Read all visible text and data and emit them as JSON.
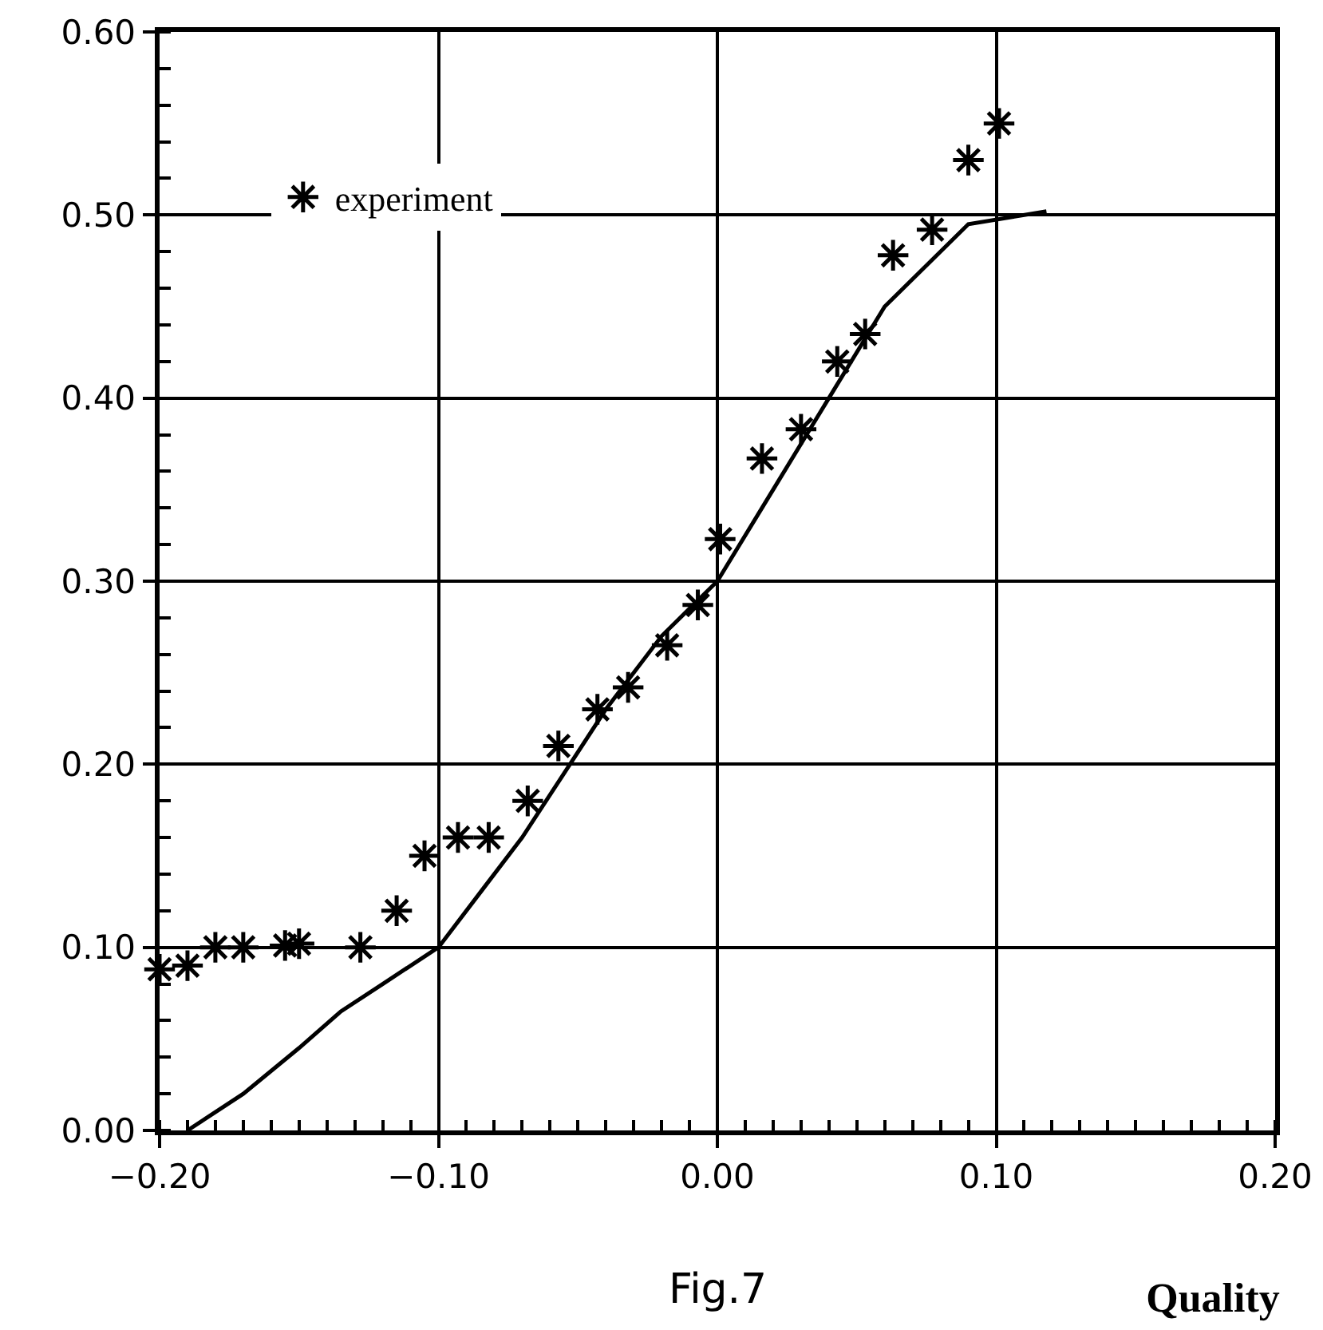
{
  "chart_data": {
    "type": "line",
    "xlabel": "Quality",
    "annotations": [
      "Fig.7"
    ],
    "xlim": [
      -0.2,
      0.2
    ],
    "xticks": [
      {
        "value": -0.2,
        "label": "−0.20"
      },
      {
        "value": -0.1,
        "label": "−0.10"
      },
      {
        "value": 0,
        "label": "0.00"
      },
      {
        "value": 0.1,
        "label": "0.10"
      },
      {
        "value": 0.2,
        "label": "0.20"
      }
    ],
    "ylim": [
      0,
      0.6
    ],
    "yticks": [
      {
        "value": 0,
        "label": "0.00"
      },
      {
        "value": 0.1,
        "label": "0.10"
      },
      {
        "value": 0.2,
        "label": "0.20"
      },
      {
        "value": 0.3,
        "label": "0.30"
      },
      {
        "value": 0.4,
        "label": "0.40"
      },
      {
        "value": 0.5,
        "label": "0.50"
      },
      {
        "value": 0.6,
        "label": "0.60"
      }
    ],
    "grid": true,
    "legend": "top left",
    "series": [
      {
        "color": "#000000",
        "line_style": "solid",
        "marker": "none",
        "x": [
          -0.19,
          -0.17,
          -0.15,
          -0.135,
          -0.12,
          -0.1,
          -0.085,
          -0.07,
          -0.055,
          -0.04,
          -0.02,
          0,
          0.02,
          0.04,
          0.06,
          0.09,
          0.118
        ],
        "values": [
          0,
          0.02,
          0.045,
          0.065,
          0.08,
          0.1,
          0.13,
          0.16,
          0.195,
          0.23,
          0.27,
          0.3,
          0.35,
          0.4,
          0.45,
          0.495,
          0.502
        ]
      },
      {
        "type": "scatter",
        "name": "experiment",
        "color": "#000000",
        "marker": "cross",
        "x": [
          -0.2,
          -0.19,
          -0.18,
          -0.17,
          -0.155,
          -0.15,
          -0.128,
          -0.115,
          -0.105,
          -0.093,
          -0.082,
          -0.068,
          -0.057,
          -0.043,
          -0.032,
          -0.018,
          -0.007,
          0.001,
          0.016,
          0.03,
          0.043,
          0.053,
          0.063,
          0.077,
          0.09,
          0.101
        ],
        "values": [
          0.088,
          0.09,
          0.1,
          0.1,
          0.101,
          0.102,
          0.1,
          0.12,
          0.15,
          0.16,
          0.16,
          0.18,
          0.21,
          0.23,
          0.242,
          0.265,
          0.287,
          0.323,
          0.367,
          0.383,
          0.42,
          0.435,
          0.478,
          0.492,
          0.53,
          0.55
        ]
      }
    ]
  }
}
